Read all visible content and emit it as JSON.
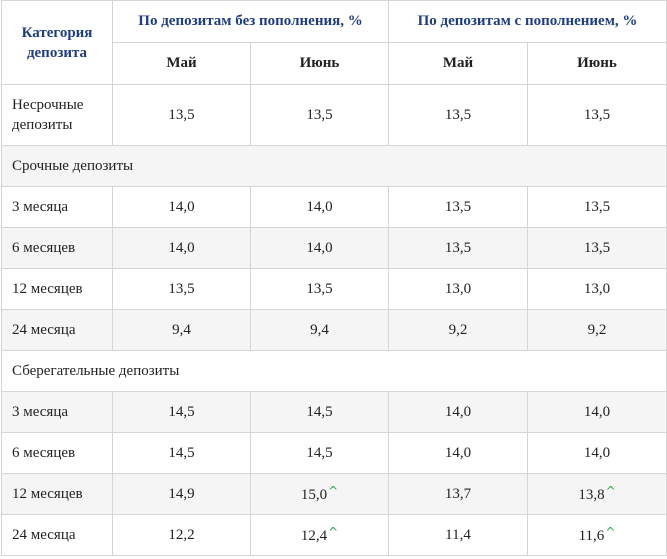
{
  "header": {
    "category": "Категория депозита",
    "group_without": "По депозитам без пополнения, %",
    "group_with": "По депозитам с пополнением, %",
    "may": "Май",
    "june": "Июнь"
  },
  "rows": {
    "nonterm": {
      "label": "Несрочные депозиты",
      "v": [
        "13,5",
        "13,5",
        "13,5",
        "13,5"
      ]
    },
    "term_section": "Срочные депозиты",
    "term_3": {
      "label": "3 месяца",
      "v": [
        "14,0",
        "14,0",
        "13,5",
        "13,5"
      ]
    },
    "term_6": {
      "label": "6 месяцев",
      "v": [
        "14,0",
        "14,0",
        "13,5",
        "13,5"
      ]
    },
    "term_12": {
      "label": "12 месяцев",
      "v": [
        "13,5",
        "13,5",
        "13,0",
        "13,0"
      ]
    },
    "term_24": {
      "label": "24 месяца",
      "v": [
        "9,4",
        "9,4",
        "9,2",
        "9,2"
      ]
    },
    "savings_section": "Сберегательные депозиты",
    "sav_3": {
      "label": "3 месяца",
      "v": [
        "14,5",
        "14,5",
        "14,0",
        "14,0"
      ]
    },
    "sav_6": {
      "label": "6 месяцев",
      "v": [
        "14,5",
        "14,5",
        "14,0",
        "14,0"
      ]
    },
    "sav_12": {
      "label": "12 месяцев",
      "v": [
        "14,9",
        "15,0",
        "13,7",
        "13,8"
      ]
    },
    "sav_24": {
      "label": "24 месяца",
      "v": [
        "12,2",
        "12,4",
        "11,4",
        "11,6"
      ]
    }
  },
  "up_mark": "^",
  "colors": {
    "header_text": "#1f3e7c",
    "up_arrow": "#2aa64a",
    "alt_row": "#f5f5f5",
    "border": "#d5d5d5"
  }
}
